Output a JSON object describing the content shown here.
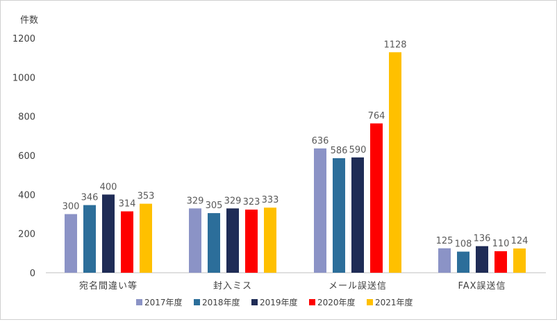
{
  "chart_data": {
    "type": "bar",
    "ylabel": "件数",
    "ylim": [
      0,
      1200
    ],
    "yticks": [
      0,
      200,
      400,
      600,
      800,
      1000,
      1200
    ],
    "grid": false,
    "legend_position": "bottom",
    "categories": [
      "宛名間違い等",
      "封入ミス",
      "メール誤送信",
      "FAX誤送信"
    ],
    "series": [
      {
        "name": "2017年度",
        "color": "#8b93c6",
        "values": [
          300,
          329,
          636,
          125
        ]
      },
      {
        "name": "2018年度",
        "color": "#2c6e9a",
        "values": [
          346,
          305,
          586,
          108
        ]
      },
      {
        "name": "2019年度",
        "color": "#1f2c56",
        "values": [
          400,
          329,
          590,
          136
        ]
      },
      {
        "name": "2020年度",
        "color": "#fe0000",
        "values": [
          314,
          323,
          764,
          110
        ]
      },
      {
        "name": "2021年度",
        "color": "#ffc000",
        "values": [
          353,
          333,
          1128,
          124
        ]
      }
    ]
  }
}
